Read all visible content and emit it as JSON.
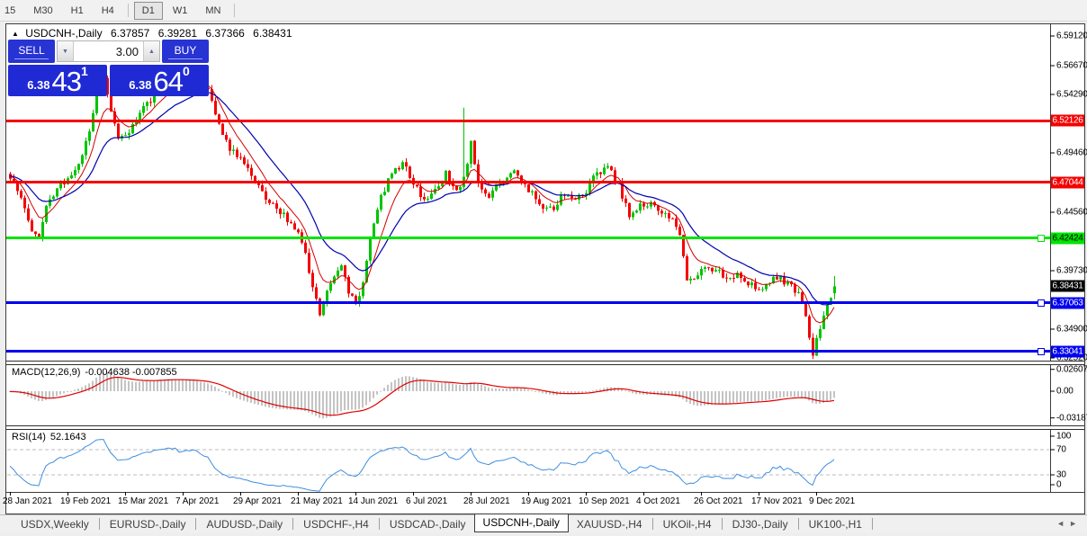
{
  "toolbar": {
    "periods": [
      "15",
      "M30",
      "H1",
      "H4",
      "D1",
      "W1",
      "MN"
    ],
    "active_period": "D1"
  },
  "window": {
    "title_symbol": "USDCNH-,Daily",
    "open": "6.37857",
    "high": "6.39281",
    "low": "6.37366",
    "close": "6.38431"
  },
  "icons": {
    "collapse": "▲",
    "spin_down": "▼",
    "spin_up": "▲",
    "scroll_left": "◄",
    "scroll_right": "►"
  },
  "trade_panel": {
    "sell_label": "SELL",
    "buy_label": "BUY",
    "volume": "3.00",
    "sell_price_small": "6.38",
    "sell_price_big": "43",
    "sell_price_sup": "1",
    "buy_price_small": "6.38",
    "buy_price_big": "64",
    "buy_price_sup": "0"
  },
  "tabs": {
    "active_index": 5,
    "items": [
      {
        "label": "USDX,Weekly"
      },
      {
        "label": "EURUSD-,Daily"
      },
      {
        "label": "AUDUSD-,Daily"
      },
      {
        "label": "USDCHF-,H4"
      },
      {
        "label": "USDCAD-,Daily"
      },
      {
        "label": "USDCNH-,Daily"
      },
      {
        "label": "XAUUSD-,H4"
      },
      {
        "label": "UKOil-,H4"
      },
      {
        "label": "DJ30-,Daily"
      },
      {
        "label": "UK100-,H1"
      }
    ]
  },
  "chart_data": {
    "type": "candlestick",
    "symbol": "USDCNH-",
    "period": "Daily",
    "up_color": "#00C400",
    "down_color": "#F50000",
    "price_axis": {
      "ticks": [
        "6.59120",
        "6.56670",
        "6.54290",
        "6.49460",
        "6.44560",
        "6.39730",
        "6.34900",
        "6.32520"
      ],
      "top_price": 6.5912,
      "bottom_price": 6.3252
    },
    "current_price": {
      "label": "6.38431",
      "price": 6.38431,
      "bg": "#000000",
      "fg": "#FFFFFF"
    },
    "levels": [
      {
        "label": "6.52126",
        "price": 6.52126,
        "color": "#F50000",
        "text_color": "#FFFFFF",
        "selected": false
      },
      {
        "label": "6.47044",
        "price": 6.47044,
        "color": "#F50000",
        "text_color": "#FFFFFF",
        "selected": false
      },
      {
        "label": "6.42424",
        "price": 6.42424,
        "color": "#00E400",
        "text_color": "#000000",
        "selected": true
      },
      {
        "label": "6.37063",
        "price": 6.37063,
        "color": "#0000F0",
        "text_color": "#FFFFFF",
        "selected": true
      },
      {
        "label": "6.33041",
        "price": 6.33041,
        "color": "#0000F0",
        "text_color": "#FFFFFF",
        "selected": true
      }
    ],
    "x_axis": {
      "labels": [
        {
          "label": "28 Jan 2021",
          "bar": 0
        },
        {
          "label": "19 Feb 2021",
          "bar": 16
        },
        {
          "label": "15 Mar 2021",
          "bar": 32
        },
        {
          "label": "7 Apr 2021",
          "bar": 48
        },
        {
          "label": "29 Apr 2021",
          "bar": 64
        },
        {
          "label": "21 May 2021",
          "bar": 80
        },
        {
          "label": "14 Jun 2021",
          "bar": 96
        },
        {
          "label": "6 Jul 2021",
          "bar": 112
        },
        {
          "label": "28 Jul 2021",
          "bar": 128
        },
        {
          "label": "19 Aug 2021",
          "bar": 144
        },
        {
          "label": "10 Sep 2021",
          "bar": 160
        },
        {
          "label": "4 Oct 2021",
          "bar": 176
        },
        {
          "label": "26 Oct 2021",
          "bar": 192
        },
        {
          "label": "17 Nov 2021",
          "bar": 208
        },
        {
          "label": "9 Dec 2021",
          "bar": 224
        }
      ]
    },
    "visible_bars": 230,
    "price_path": [
      [
        0,
        6.476
      ],
      [
        2,
        6.462
      ],
      [
        4,
        6.448
      ],
      [
        6,
        6.43
      ],
      [
        8,
        6.427
      ],
      [
        10,
        6.45
      ],
      [
        13,
        6.466
      ],
      [
        16,
        6.474
      ],
      [
        19,
        6.486
      ],
      [
        22,
        6.51
      ],
      [
        24,
        6.55
      ],
      [
        26,
        6.556
      ],
      [
        28,
        6.528
      ],
      [
        30,
        6.506
      ],
      [
        33,
        6.512
      ],
      [
        36,
        6.527
      ],
      [
        40,
        6.543
      ],
      [
        44,
        6.554
      ],
      [
        48,
        6.551
      ],
      [
        51,
        6.557
      ],
      [
        55,
        6.547
      ],
      [
        58,
        6.519
      ],
      [
        61,
        6.498
      ],
      [
        64,
        6.488
      ],
      [
        67,
        6.476
      ],
      [
        70,
        6.462
      ],
      [
        73,
        6.452
      ],
      [
        76,
        6.443
      ],
      [
        79,
        6.434
      ],
      [
        82,
        6.41
      ],
      [
        84,
        6.382
      ],
      [
        86,
        6.361
      ],
      [
        88,
        6.379
      ],
      [
        90,
        6.394
      ],
      [
        92,
        6.401
      ],
      [
        94,
        6.378
      ],
      [
        96,
        6.371
      ],
      [
        98,
        6.386
      ],
      [
        100,
        6.424
      ],
      [
        103,
        6.459
      ],
      [
        106,
        6.477
      ],
      [
        109,
        6.487
      ],
      [
        112,
        6.47
      ],
      [
        115,
        6.456
      ],
      [
        118,
        6.466
      ],
      [
        121,
        6.477
      ],
      [
        124,
        6.463
      ],
      [
        126,
        6.474
      ],
      [
        128,
        6.503
      ],
      [
        130,
        6.468
      ],
      [
        133,
        6.458
      ],
      [
        136,
        6.47
      ],
      [
        139,
        6.48
      ],
      [
        142,
        6.472
      ],
      [
        145,
        6.46
      ],
      [
        148,
        6.446
      ],
      [
        151,
        6.45
      ],
      [
        154,
        6.461
      ],
      [
        157,
        6.455
      ],
      [
        160,
        6.463
      ],
      [
        163,
        6.479
      ],
      [
        166,
        6.482
      ],
      [
        169,
        6.468
      ],
      [
        172,
        6.442
      ],
      [
        175,
        6.452
      ],
      [
        178,
        6.452
      ],
      [
        181,
        6.447
      ],
      [
        184,
        6.44
      ],
      [
        186,
        6.425
      ],
      [
        188,
        6.392
      ],
      [
        190,
        6.389
      ],
      [
        193,
        6.401
      ],
      [
        196,
        6.399
      ],
      [
        199,
        6.392
      ],
      [
        202,
        6.395
      ],
      [
        205,
        6.388
      ],
      [
        208,
        6.383
      ],
      [
        211,
        6.389
      ],
      [
        214,
        6.391
      ],
      [
        217,
        6.384
      ],
      [
        219,
        6.379
      ],
      [
        221,
        6.357
      ],
      [
        223,
        6.33
      ],
      [
        225,
        6.351
      ],
      [
        227,
        6.371
      ],
      [
        229,
        6.38431
      ]
    ],
    "last_bar": {
      "open": 6.37857,
      "high": 6.39281,
      "low": 6.37366,
      "close": 6.38431
    },
    "swing_high": {
      "bar": 126,
      "price": 6.532
    },
    "swing_low": {
      "bar": 223,
      "price": 6.3243
    },
    "indicators": {
      "ma_fast": {
        "method": "EMA",
        "period": 8,
        "color": "#D40000"
      },
      "ma_slow": {
        "method": "EMA",
        "period": 20,
        "color": "#0000B0"
      },
      "macd": {
        "title": "MACD(12,26,9)",
        "value_text": "-0.004638 -0.007855",
        "axis_labels": [
          "0.02607",
          "0.00",
          "-0.03187"
        ],
        "axis_values": [
          0.02607,
          0,
          -0.03187
        ],
        "histogram_color": "#C4C4C4",
        "signal_color": "#E00000"
      },
      "rsi": {
        "title": "RSI(14)",
        "value_text": "52.1643",
        "period": 14,
        "axis_labels": [
          "100",
          "70",
          "30",
          "0"
        ],
        "axis_values": [
          100,
          70,
          30,
          0
        ],
        "levels": [
          70,
          30
        ],
        "color": "#3E8EDE"
      }
    }
  }
}
